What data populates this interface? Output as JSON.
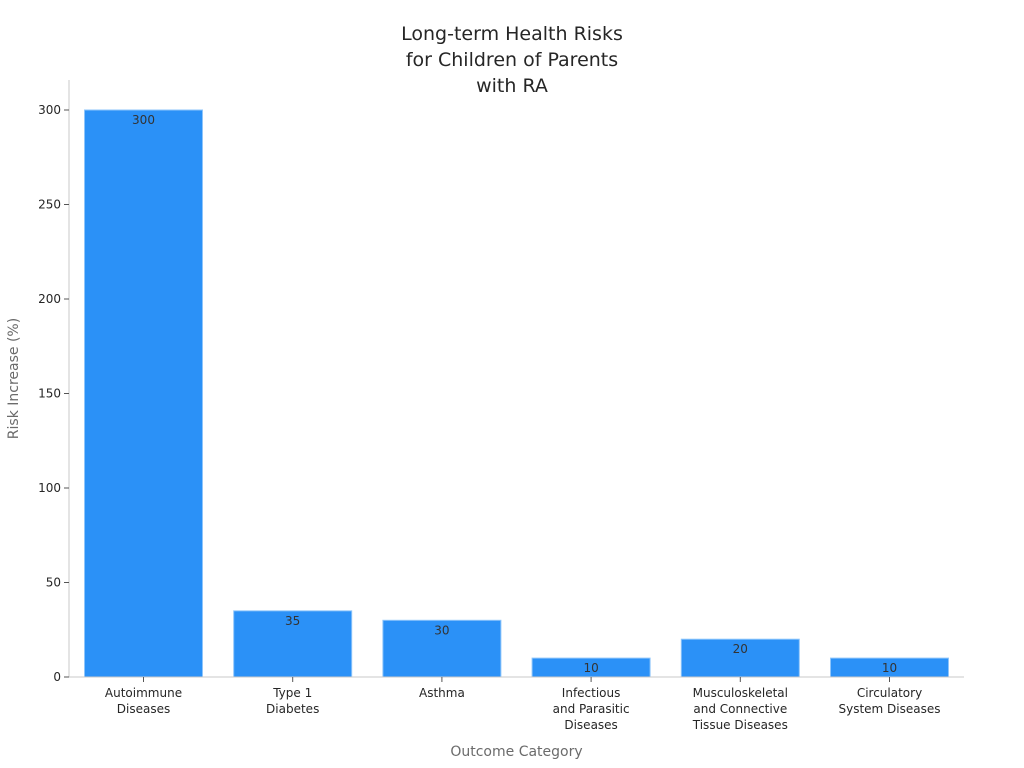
{
  "chart_data": {
    "type": "bar",
    "title_lines": [
      "Long-term Health Risks",
      "for Children of Parents",
      "with RA"
    ],
    "xlabel": "Outcome Category",
    "ylabel": "Risk Increase (%)",
    "categories": [
      [
        "Autoimmune",
        "Diseases"
      ],
      [
        "Type 1",
        "Diabetes"
      ],
      [
        "Asthma"
      ],
      [
        "Infectious",
        "and Parasitic",
        "Diseases"
      ],
      [
        "Musculoskeletal",
        "and Connective",
        "Tissue Diseases"
      ],
      [
        "Circulatory",
        "System Diseases"
      ]
    ],
    "values": [
      300,
      35,
      30,
      10,
      20,
      10
    ],
    "data_labels": [
      "300",
      "35",
      "30",
      "10",
      "20",
      "10"
    ],
    "ylim": [
      0,
      300
    ],
    "yticks": [
      0,
      50,
      100,
      150,
      200,
      250,
      300
    ],
    "ytick_labels": [
      "0",
      "50",
      "100",
      "150",
      "200",
      "250",
      "300"
    ],
    "grid": false,
    "bar_color": "#2b91f7",
    "axis_color": "#c8c8c8"
  }
}
